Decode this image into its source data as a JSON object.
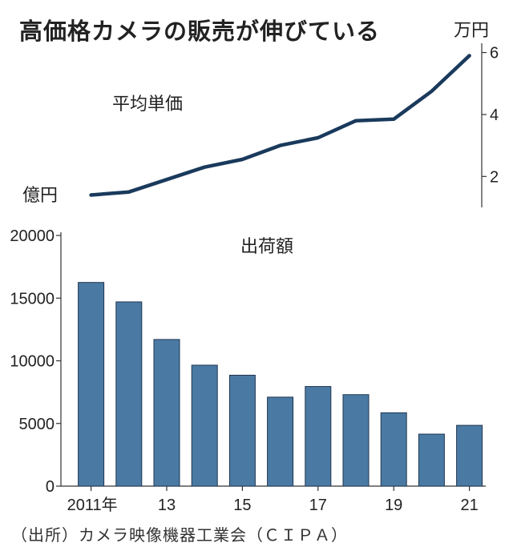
{
  "title": "高価格カメラの販売が伸びている",
  "source": "（出所）カメラ映像機器工業会（ＣＩＰＡ）",
  "chart_data": [
    {
      "type": "line",
      "title": "平均単価",
      "unit": "万円",
      "x": [
        2011,
        2012,
        2013,
        2014,
        2015,
        2016,
        2017,
        2018,
        2019,
        2020,
        2021
      ],
      "values": [
        1.4,
        1.5,
        1.9,
        2.3,
        2.55,
        3.0,
        3.25,
        3.8,
        3.85,
        4.75,
        5.9
      ],
      "ylim": [
        1,
        6.3
      ],
      "yticks": [
        2,
        4,
        6
      ],
      "color": "#1a3a5c"
    },
    {
      "type": "bar",
      "title": "出荷額",
      "unit": "億円",
      "categories": [
        2011,
        2012,
        2013,
        2014,
        2015,
        2016,
        2017,
        2018,
        2019,
        2020,
        2021
      ],
      "values": [
        16250,
        14700,
        11700,
        9650,
        8850,
        7100,
        7950,
        7300,
        5850,
        4150,
        4850
      ],
      "ylim": [
        0,
        20000
      ],
      "yticks": [
        "0",
        "5000",
        "10000",
        "15000",
        "20000"
      ],
      "xticks": [
        "2011年",
        "13",
        "15",
        "17",
        "19",
        "21"
      ],
      "color": "#4a7aa3"
    }
  ]
}
